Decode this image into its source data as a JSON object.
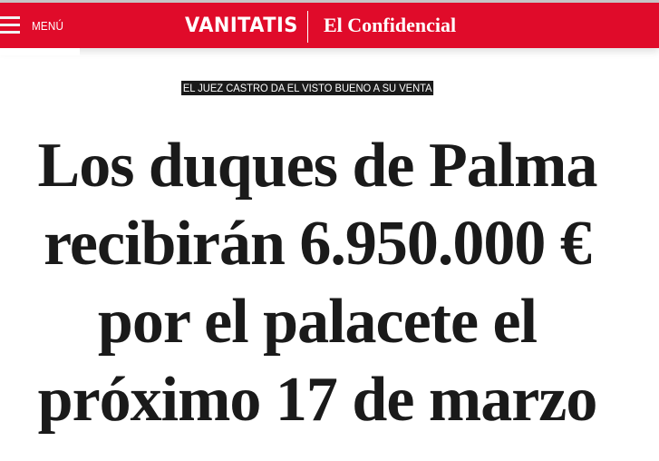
{
  "header": {
    "menu_label": "MENÚ",
    "brand": "VANITATIS",
    "parent_brand": "El Confidencial",
    "color": "#e00b2a"
  },
  "article": {
    "kicker": "EL JUEZ CASTRO DA EL VISTO BUENO A SU VENTA",
    "headline_lines": [
      "Los duques de Palma",
      "recibirán 6.950.000 €",
      "por el palacete el",
      "próximo 17 de marzo"
    ]
  }
}
